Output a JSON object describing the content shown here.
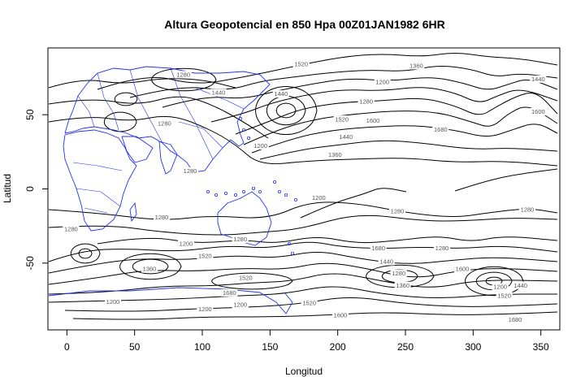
{
  "chart_data": {
    "type": "contour",
    "title": "Altura Geopotencial en 850 Hpa 00Z01JAN1982 6HR",
    "xlabel": "Longitud",
    "ylabel": "Latitud",
    "xlim": [
      -14,
      364
    ],
    "ylim": [
      -95,
      95
    ],
    "xticks": [
      0,
      50,
      100,
      150,
      200,
      250,
      300,
      350
    ],
    "yticks": [
      -50,
      0,
      50
    ],
    "contour_labels": [
      {
        "value": "1520",
        "lon": 173,
        "lat": 84
      },
      {
        "value": "1360",
        "lon": 258,
        "lat": 83
      },
      {
        "value": "1280",
        "lon": 86,
        "lat": 77
      },
      {
        "value": "1200",
        "lon": 233,
        "lat": 72
      },
      {
        "value": "1440",
        "lon": 348,
        "lat": 74
      },
      {
        "value": "1440",
        "lon": 112,
        "lat": 65
      },
      {
        "value": "1440",
        "lon": 158,
        "lat": 64
      },
      {
        "value": "1280",
        "lon": 221,
        "lat": 59
      },
      {
        "value": "1520",
        "lon": 203,
        "lat": 47
      },
      {
        "value": "1600",
        "lon": 226,
        "lat": 46
      },
      {
        "value": "1680",
        "lon": 276,
        "lat": 40
      },
      {
        "value": "1600",
        "lon": 348,
        "lat": 52
      },
      {
        "value": "1280",
        "lon": 72,
        "lat": 44
      },
      {
        "value": "1440",
        "lon": 206,
        "lat": 35
      },
      {
        "value": "1200",
        "lon": 143,
        "lat": 29
      },
      {
        "value": "1360",
        "lon": 198,
        "lat": 23
      },
      {
        "value": "1280",
        "lon": 91,
        "lat": 12
      },
      {
        "value": "1200",
        "lon": 186,
        "lat": -6
      },
      {
        "value": "1280",
        "lon": 70,
        "lat": -19
      },
      {
        "value": "1280",
        "lon": 244,
        "lat": -15
      },
      {
        "value": "1280",
        "lon": 340,
        "lat": -14
      },
      {
        "value": "1280",
        "lon": 3,
        "lat": -27
      },
      {
        "value": "1280",
        "lon": 128,
        "lat": -34
      },
      {
        "value": "1200",
        "lon": 88,
        "lat": -37
      },
      {
        "value": "1680",
        "lon": 230,
        "lat": -40
      },
      {
        "value": "1280",
        "lon": 277,
        "lat": -40
      },
      {
        "value": "1520",
        "lon": 102,
        "lat": -45
      },
      {
        "value": "1440",
        "lon": 236,
        "lat": -49
      },
      {
        "value": "1360",
        "lon": 61,
        "lat": -54
      },
      {
        "value": "1600",
        "lon": 292,
        "lat": -54
      },
      {
        "value": "1280",
        "lon": 245,
        "lat": -57
      },
      {
        "value": "1520",
        "lon": 132,
        "lat": -60
      },
      {
        "value": "1360",
        "lon": 248,
        "lat": -65
      },
      {
        "value": "1200",
        "lon": 320,
        "lat": -66
      },
      {
        "value": "1440",
        "lon": 335,
        "lat": -65
      },
      {
        "value": "1680",
        "lon": 120,
        "lat": -70
      },
      {
        "value": "1520",
        "lon": 323,
        "lat": -72
      },
      {
        "value": "1200",
        "lon": 34,
        "lat": -76
      },
      {
        "value": "1200",
        "lon": 128,
        "lat": -78
      },
      {
        "value": "1520",
        "lon": 179,
        "lat": -77
      },
      {
        "value": "1200",
        "lon": 102,
        "lat": -81
      },
      {
        "value": "1600",
        "lon": 202,
        "lat": -85
      },
      {
        "value": "1680",
        "lon": 331,
        "lat": -88
      }
    ]
  }
}
